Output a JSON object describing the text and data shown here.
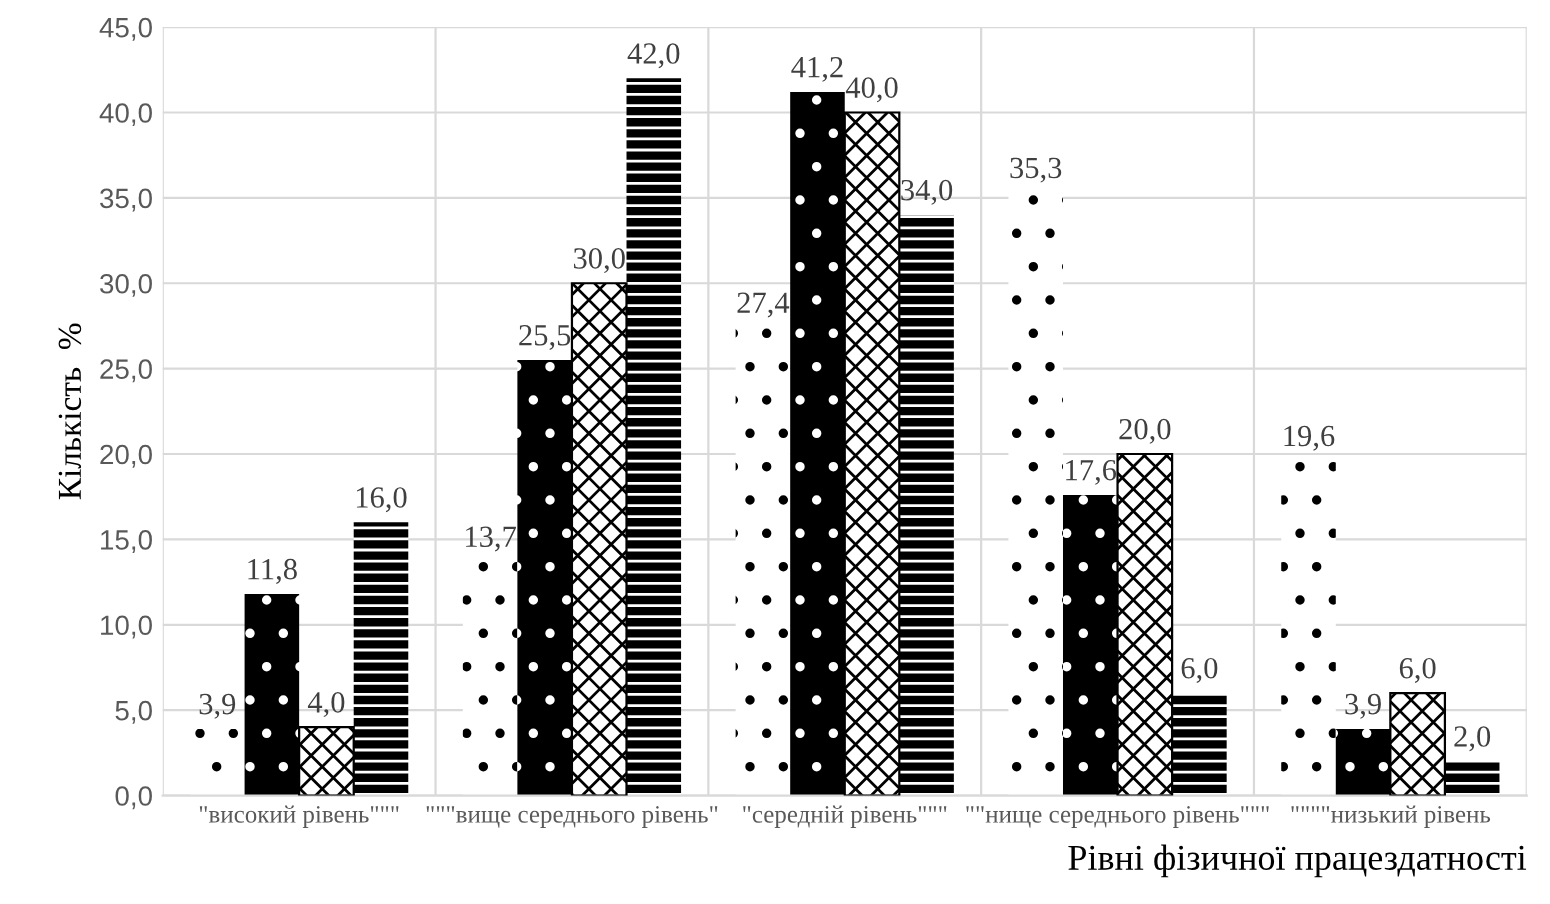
{
  "chart_data": {
    "type": "bar",
    "xlabel": "Рівні фізичної працездатності",
    "ylabel": "Кількість  %",
    "categories": [
      "\"високий рівень\"\"\"",
      "\"\"\"вище середнього рівень\"",
      "\"середній рівень\"\"\"",
      "\"\"нище середнього рівень\"\"\"",
      "\"\"\"\"низький рівень"
    ],
    "series": [
      {
        "color": "#ffffff",
        "values": [
          3.9,
          13.7,
          27.4,
          35.3,
          19.6
        ],
        "value_labels": [
          "3,9",
          "13,7",
          "27,4",
          "35,3",
          "19,6"
        ]
      },
      {
        "color": "#000000",
        "values": [
          11.8,
          25.5,
          41.2,
          17.6,
          3.9
        ],
        "value_labels": [
          "11,8",
          "25,5",
          "41,2",
          "17,6",
          "3,9"
        ]
      },
      {
        "color": "#ffffff",
        "values": [
          4.0,
          30.0,
          40.0,
          20.0,
          6.0
        ],
        "value_labels": [
          "4,0",
          "30,0",
          "40,0",
          "20,0",
          "6,0"
        ]
      },
      {
        "color": "#000000",
        "values": [
          16.0,
          42.0,
          34.0,
          6.0,
          2.0
        ],
        "value_labels": [
          "16,0",
          "42,0",
          "34,0",
          "6,0",
          "2,0"
        ]
      }
    ],
    "ylim": [
      0,
      45
    ],
    "yticks": [
      {
        "value": 0,
        "label": "0,0"
      },
      {
        "value": 5,
        "label": "5,0"
      },
      {
        "value": 10,
        "label": "10,0"
      },
      {
        "value": 15,
        "label": "15,0"
      },
      {
        "value": 20,
        "label": "20,0"
      },
      {
        "value": 25,
        "label": "25,0"
      },
      {
        "value": 30,
        "label": "30,0"
      },
      {
        "value": 35,
        "label": "35,0"
      },
      {
        "value": 40,
        "label": "40,0"
      },
      {
        "value": 45,
        "label": "45,0"
      }
    ],
    "grid": true,
    "legend": false
  }
}
